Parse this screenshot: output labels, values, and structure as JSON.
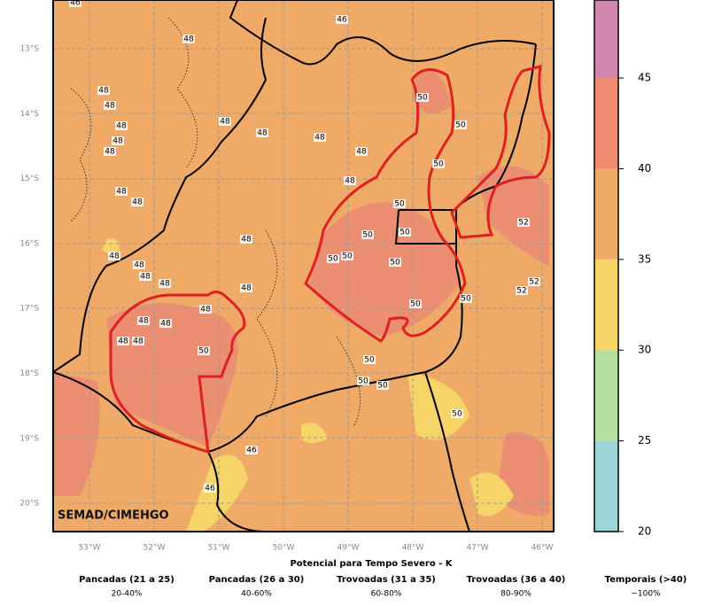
{
  "map": {
    "watermark": "SEMAD/CIMEHGO",
    "lat_labels": [
      "13°S",
      "14°S",
      "15°S",
      "16°S",
      "17°S",
      "18°S",
      "19°S",
      "20°S"
    ],
    "lon_labels": [
      "53°W",
      "52°W",
      "51°W",
      "50°W",
      "49°W",
      "48°W",
      "47°W",
      "46°W"
    ],
    "contour_labels": [
      46,
      46,
      48,
      48,
      48,
      48,
      48,
      48,
      48,
      48,
      48,
      48,
      48,
      48,
      48,
      48,
      48,
      48,
      48,
      48,
      48,
      48,
      48,
      48,
      48,
      48,
      50,
      50,
      50,
      50,
      50,
      50,
      50,
      50,
      50,
      50,
      50,
      50,
      52,
      52,
      52,
      50,
      50,
      50,
      50,
      46,
      46
    ]
  },
  "colorbar": {
    "ylim": [
      20,
      49.3
    ],
    "yticks": [
      20,
      25,
      30,
      35,
      40,
      45
    ],
    "colors": [
      "#9dd6d8",
      "#b4dfa0",
      "#f6d468",
      "#f0aa68",
      "#ef8c72",
      "#cf87ae"
    ]
  },
  "caption": {
    "title": "Potencial para Tempo Severo - K",
    "items": [
      {
        "name": "Pancadas (21 a 25)",
        "range": "20-40%"
      },
      {
        "name": "Pancadas (26 a 30)",
        "range": "40-60%"
      },
      {
        "name": "Trovoadas (31 a 35)",
        "range": "60-80%"
      },
      {
        "name": "Trovoadas (36 a 40)",
        "range": "80-90%"
      },
      {
        "name": "Temporais (>40)",
        "range": "~100%"
      }
    ]
  }
}
